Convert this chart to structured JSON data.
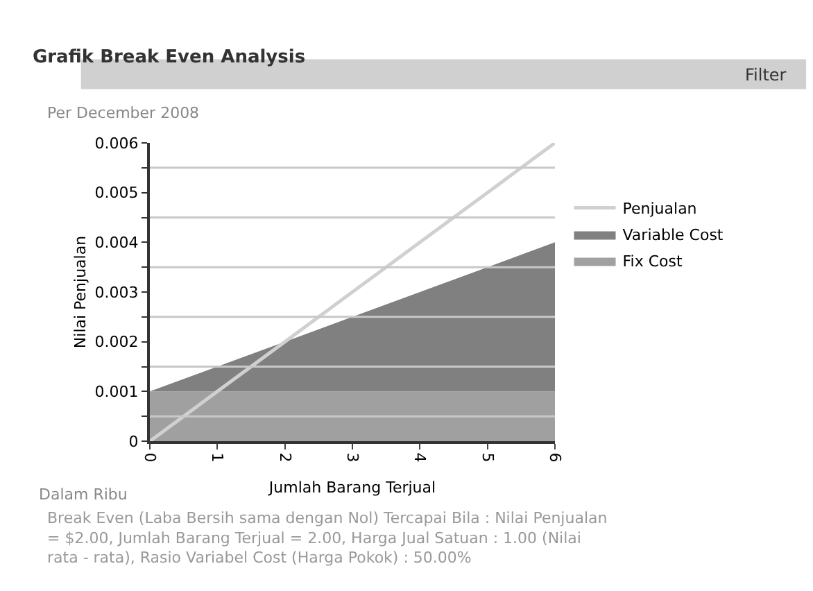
{
  "chart_data": {
    "type": "area",
    "title": "Grafik Break Even Analysis",
    "subtitle": "Per December 2008",
    "xlabel": "Jumlah Barang Terjual",
    "ylabel": "Nilai Penjualan",
    "x": [
      0,
      1,
      2,
      3,
      4,
      5,
      6
    ],
    "stacked": true,
    "series": [
      {
        "name": "Fix Cost",
        "color": "#a0a0a0",
        "values": [
          0.001,
          0.001,
          0.001,
          0.001,
          0.001,
          0.001,
          0.001
        ]
      },
      {
        "name": "Variable Cost",
        "color": "#808080",
        "values": [
          0,
          0.0005,
          0.001,
          0.0015,
          0.002,
          0.0025,
          0.003
        ]
      },
      {
        "name": "Penjualan",
        "type": "line",
        "color": "#d0d0d0",
        "values": [
          0,
          0.001,
          0.002,
          0.003,
          0.004,
          0.005,
          0.006
        ]
      }
    ],
    "xlim": [
      0,
      6
    ],
    "xticks": [
      0,
      1,
      2,
      3,
      4,
      5,
      6
    ],
    "ylim": [
      0,
      0.006
    ],
    "yticks": [
      0,
      {
        "value": 0.0005,
        "label": null
      },
      {
        "value": 0.001,
        "label": "0.001"
      },
      {
        "value": 0.0015,
        "label": null
      },
      {
        "value": 0.002,
        "label": "0.002"
      },
      {
        "value": 0.0025,
        "label": null
      },
      {
        "value": 0.003,
        "label": "0.003"
      },
      {
        "value": 0.0035,
        "label": null
      },
      {
        "value": 0.004,
        "label": "0.004"
      },
      {
        "value": 0.0045,
        "label": null
      },
      {
        "value": 0.005,
        "label": "0.005"
      },
      {
        "value": 0.0055,
        "label": null
      },
      {
        "value": 0.006,
        "label": "0.006"
      }
    ],
    "grid": "y",
    "legend": "right",
    "marker": "none",
    "annotations": [
      "Filter",
      "Dalam Ribu",
      "Break Even (Laba Bersih sama dengan Nol) Tercapai Bila : Nilai Penjualan = $2.00, Jumlah Barang Terjual = 2.00, Harga Jual Satuan : 1.00 (Nilai rata - rata), Rasio Variabel Cost (Harga Pokok) : 50.00%"
    ]
  }
}
